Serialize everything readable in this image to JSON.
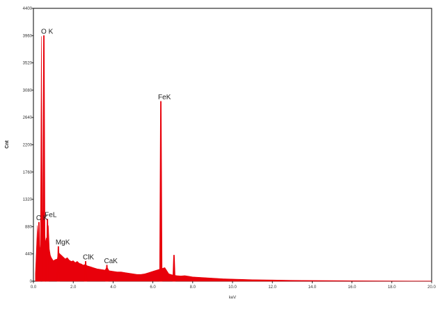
{
  "chart_data": {
    "type": "line",
    "title": "",
    "xlabel": "keV",
    "ylabel": "Cnt",
    "xlim": [
      0,
      20
    ],
    "ylim": [
      0,
      4400
    ],
    "x_ticks": [
      "0.0",
      "2.0",
      "4.0",
      "6.0",
      "8.0",
      "10.0",
      "12.0",
      "14.0",
      "16.0",
      "18.0",
      "20.0"
    ],
    "y_ticks": [
      "0",
      "440",
      "880",
      "1320",
      "1760",
      "2200",
      "2640",
      "3080",
      "3520",
      "3960",
      "4400"
    ],
    "grid": false,
    "legend": "none",
    "series_color": "#e8000b",
    "spectrum": {
      "x": [
        0.1,
        0.2,
        0.25,
        0.3,
        0.35,
        0.4,
        0.45,
        0.5,
        0.55,
        0.6,
        0.65,
        0.7,
        0.75,
        0.8,
        0.85,
        0.9,
        1.0,
        1.1,
        1.2,
        1.25,
        1.3,
        1.4,
        1.5,
        1.6,
        1.7,
        1.8,
        1.9,
        2.0,
        2.1,
        2.2,
        2.3,
        2.4,
        2.5,
        2.6,
        2.7,
        2.8,
        2.9,
        3.0,
        3.2,
        3.4,
        3.6,
        3.69,
        3.8,
        4.0,
        4.2,
        4.4,
        4.6,
        4.8,
        5.0,
        5.2,
        5.4,
        5.6,
        5.8,
        6.0,
        6.2,
        6.4,
        6.6,
        6.8,
        7.0,
        7.2,
        7.4,
        7.6,
        7.8,
        8.0,
        8.5,
        9.0,
        9.5,
        10.0,
        10.5,
        11.0,
        12.0,
        13.0,
        14.0,
        15.0,
        16.0,
        17.0,
        18.0,
        19.0,
        20.0
      ],
      "y": [
        120,
        900,
        520,
        600,
        500,
        3950,
        1150,
        850,
        1000,
        620,
        700,
        560,
        900,
        520,
        420,
        380,
        330,
        350,
        360,
        480,
        450,
        420,
        390,
        360,
        380,
        340,
        320,
        330,
        300,
        320,
        290,
        280,
        260,
        270,
        250,
        240,
        230,
        220,
        200,
        190,
        180,
        230,
        170,
        160,
        150,
        150,
        140,
        130,
        120,
        110,
        110,
        120,
        140,
        160,
        180,
        200,
        220,
        120,
        100,
        90,
        85,
        90,
        80,
        70,
        60,
        50,
        40,
        35,
        30,
        25,
        20,
        15,
        12,
        10,
        8,
        6,
        5,
        4,
        3
      ]
    },
    "peaks": [
      {
        "x": 0.525,
        "y": 3960,
        "label": "O K"
      },
      {
        "x": 0.705,
        "y": 1000,
        "label": "FeL"
      },
      {
        "x": 0.277,
        "y": 950,
        "label": "C K"
      },
      {
        "x": 1.253,
        "y": 560,
        "label": "MgK"
      },
      {
        "x": 2.622,
        "y": 320,
        "label": "ClK"
      },
      {
        "x": 3.69,
        "y": 260,
        "label": "CaK"
      },
      {
        "x": 6.4,
        "y": 2900,
        "label": "FeK"
      },
      {
        "x": 7.06,
        "y": 420,
        "label": ""
      }
    ]
  }
}
